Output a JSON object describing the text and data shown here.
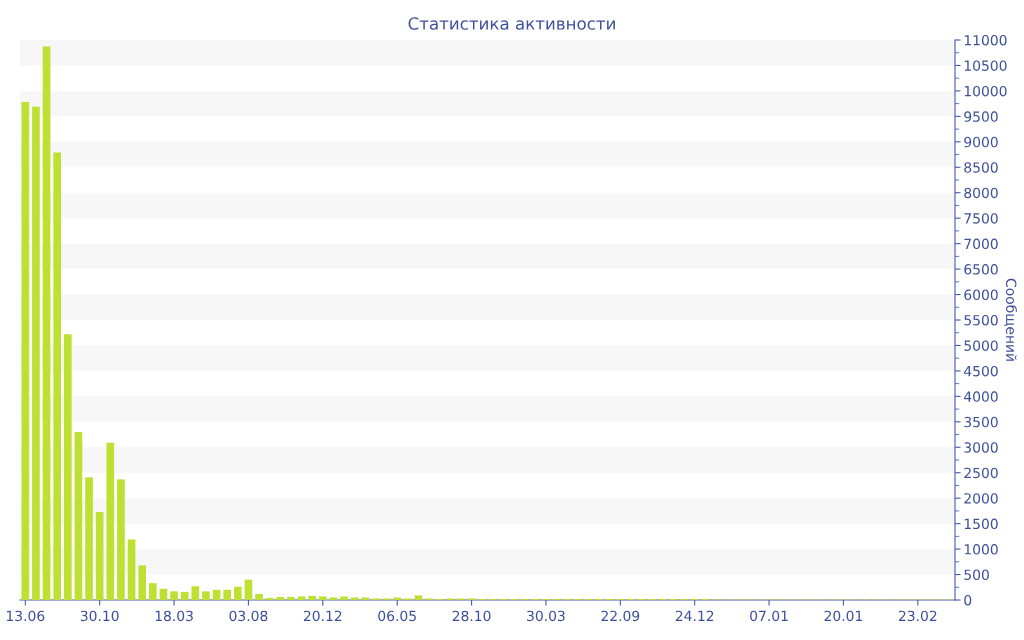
{
  "chart_data": {
    "type": "bar",
    "title": "Статистика активности",
    "ylabel": "Сообщений",
    "categories": [
      "13.06",
      null,
      null,
      null,
      null,
      null,
      null,
      "30.10",
      null,
      null,
      null,
      null,
      null,
      null,
      "18.03",
      null,
      null,
      null,
      null,
      null,
      null,
      "03.08",
      null,
      null,
      null,
      null,
      null,
      null,
      "20.12",
      null,
      null,
      null,
      null,
      null,
      null,
      "06.05",
      null,
      null,
      null,
      null,
      null,
      null,
      "28.10",
      null,
      null,
      null,
      null,
      null,
      null,
      "30.03",
      null,
      null,
      null,
      null,
      null,
      null,
      "22.09",
      null,
      null,
      null,
      null,
      null,
      null,
      "24.12",
      null,
      null,
      null,
      null,
      null,
      null,
      "07.01",
      null,
      null,
      null,
      null,
      null,
      null,
      "20.01",
      null,
      null,
      null,
      null,
      null,
      null,
      "23.02",
      null,
      null,
      null
    ],
    "values": [
      9780,
      9690,
      10870,
      8790,
      5220,
      3300,
      2410,
      1730,
      3090,
      2370,
      1190,
      680,
      330,
      220,
      170,
      160,
      270,
      170,
      200,
      200,
      260,
      400,
      120,
      40,
      60,
      60,
      70,
      80,
      70,
      50,
      70,
      50,
      50,
      30,
      30,
      50,
      30,
      90,
      30,
      20,
      30,
      30,
      30,
      20,
      20,
      20,
      20,
      20,
      20,
      20,
      20,
      20,
      20,
      20,
      20,
      20,
      20,
      20,
      20,
      20,
      20,
      20,
      20,
      20,
      20,
      10,
      10,
      10,
      10,
      10,
      10,
      10,
      10,
      10,
      10,
      10,
      10,
      10,
      10,
      10,
      10,
      10,
      10,
      10,
      10,
      10,
      10,
      10
    ],
    "color": "#bde032",
    "ylim": [
      0,
      11000
    ],
    "yticks": [
      0,
      500,
      1000,
      1500,
      2000,
      2500,
      3000,
      3500,
      4000,
      4500,
      5000,
      5500,
      6000,
      6500,
      7000,
      7500,
      8000,
      8500,
      9000,
      9500,
      10000,
      10500,
      11000
    ],
    "bands": [
      {
        "axis": "y",
        "from": 500,
        "to": 1000,
        "color": "#f7f7f7"
      },
      {
        "axis": "y",
        "from": 1500,
        "to": 2000,
        "color": "#f7f7f7"
      },
      {
        "axis": "y",
        "from": 2500,
        "to": 3000,
        "color": "#f7f7f7"
      },
      {
        "axis": "y",
        "from": 3500,
        "to": 4000,
        "color": "#f7f7f7"
      },
      {
        "axis": "y",
        "from": 4500,
        "to": 5000,
        "color": "#f7f7f7"
      },
      {
        "axis": "y",
        "from": 5500,
        "to": 6000,
        "color": "#f7f7f7"
      },
      {
        "axis": "y",
        "from": 6500,
        "to": 7000,
        "color": "#f7f7f7"
      },
      {
        "axis": "y",
        "from": 7500,
        "to": 8000,
        "color": "#f7f7f7"
      },
      {
        "axis": "y",
        "from": 8500,
        "to": 9000,
        "color": "#f7f7f7"
      },
      {
        "axis": "y",
        "from": 9500,
        "to": 10000,
        "color": "#f7f7f7"
      },
      {
        "axis": "y",
        "from": 10500,
        "to": 11000,
        "color": "#f7f7f7"
      }
    ],
    "legend": false
  }
}
